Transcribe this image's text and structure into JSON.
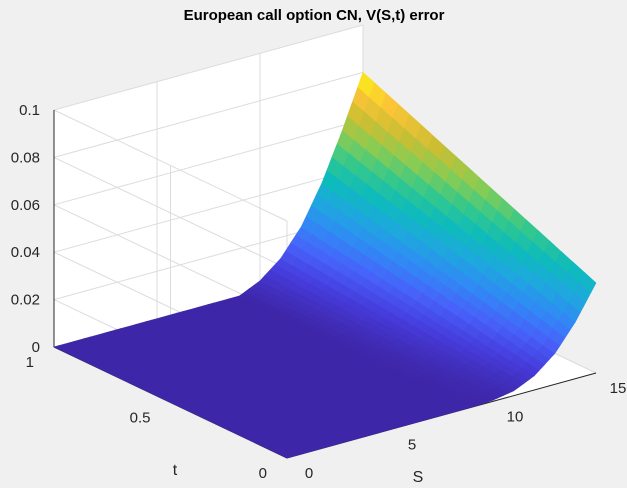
{
  "chart_data": {
    "type": "surface",
    "title": "European call option CN, V(S,t) error",
    "xlabel": "S",
    "ylabel": "t",
    "zlabel": "",
    "xlim": [
      0,
      15
    ],
    "ylim": [
      0,
      1
    ],
    "zlim": [
      0,
      0.1
    ],
    "xticks": [
      0,
      5,
      10,
      15
    ],
    "xtick_labels": [
      "0",
      "5",
      "10",
      "15"
    ],
    "yticks": [
      0,
      0.5,
      1
    ],
    "ytick_labels": [
      "0",
      "0.5",
      "1"
    ],
    "zticks": [
      0,
      0.02,
      0.04,
      0.06,
      0.08,
      0.1
    ],
    "ztick_labels": [
      "0",
      "0.02",
      "0.04",
      "0.06",
      "0.08",
      "0.1"
    ],
    "grid": true,
    "colormap": "parula",
    "surface": {
      "description_of_values": "error is ~0 for S below about 9 and rises steeply toward S=15",
      "S": [
        0,
        9,
        10,
        11,
        12,
        13,
        14,
        15
      ],
      "error_at_t0": [
        0,
        0,
        0.0005,
        0.002,
        0.006,
        0.013,
        0.024,
        0.038
      ],
      "error_at_t1": [
        0,
        0,
        0.004,
        0.011,
        0.022,
        0.038,
        0.058,
        0.08
      ]
    }
  }
}
